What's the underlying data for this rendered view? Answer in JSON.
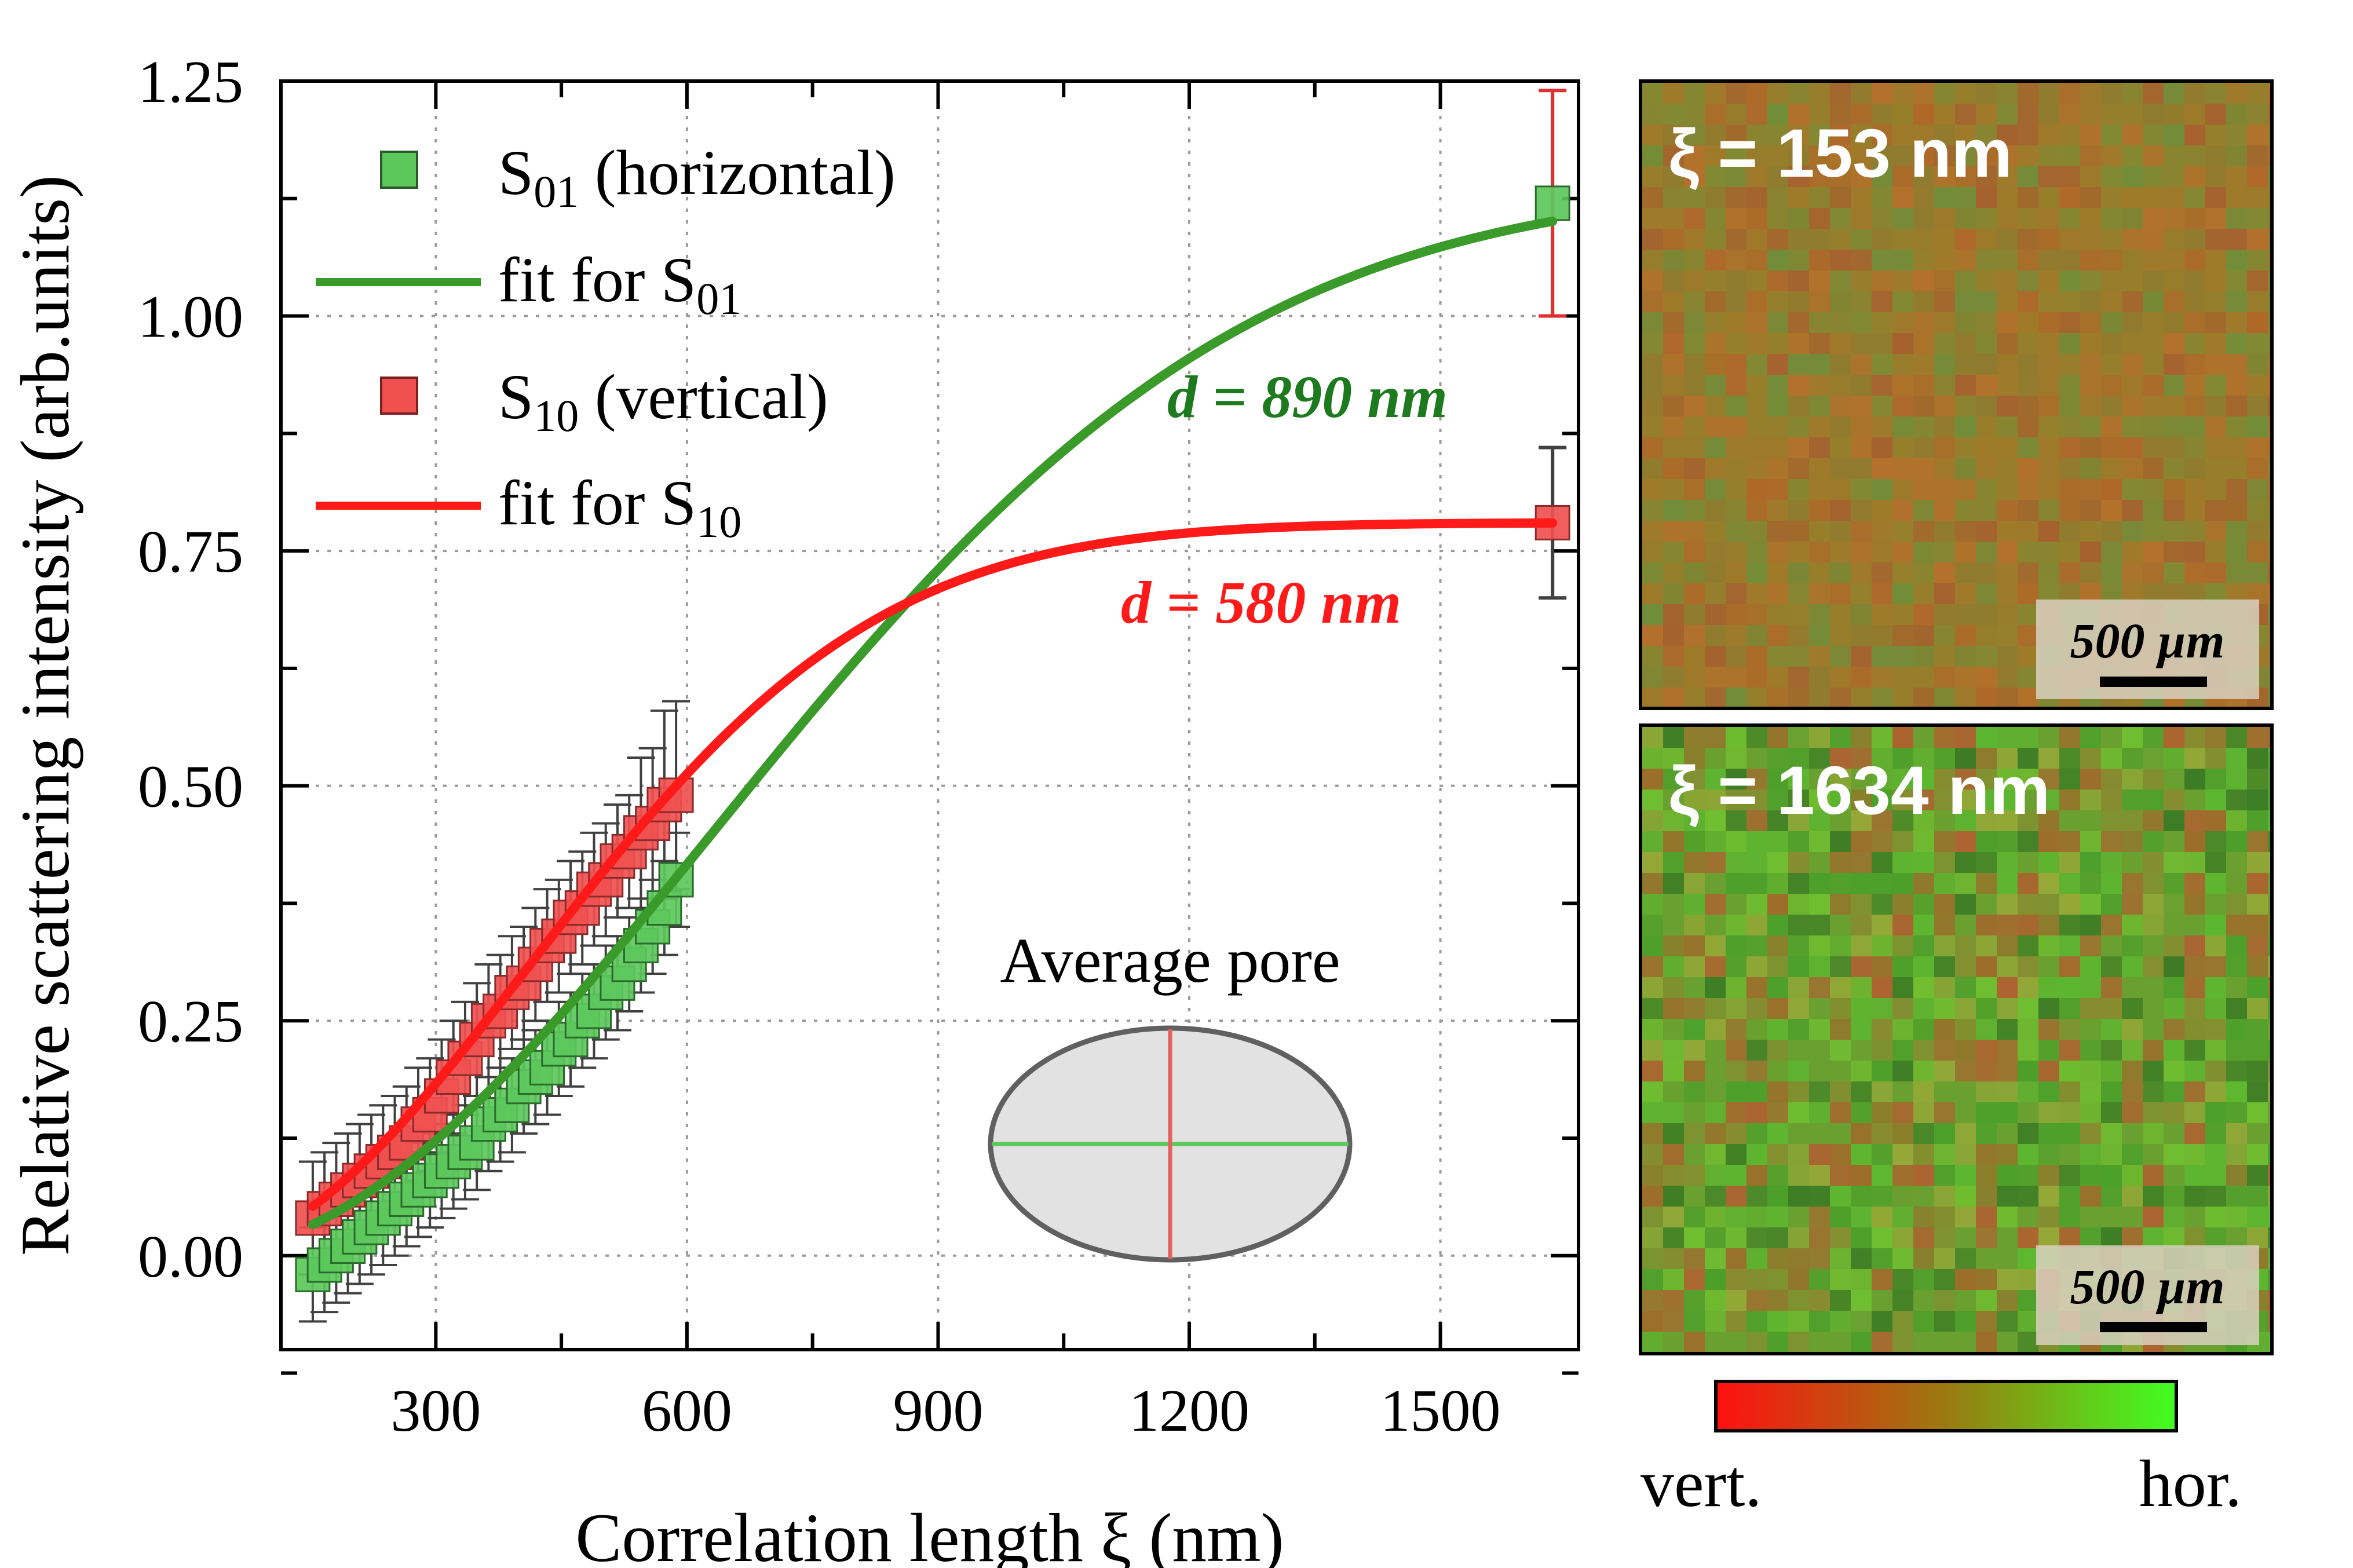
{
  "chart_data": {
    "type": "scatter",
    "xlabel": "Correlation length ξ (nm)",
    "ylabel": "Relative scattering intensity (arb.units)",
    "xlim": [
      115,
      1665
    ],
    "ylim": [
      -0.1,
      1.25
    ],
    "xticks": [
      300,
      600,
      900,
      1200,
      1500
    ],
    "xtick_labels": [
      "300",
      "600",
      "900",
      "1200",
      "1500"
    ],
    "yticks": [
      0.0,
      0.25,
      0.5,
      0.75,
      1.0,
      1.25
    ],
    "ytick_labels": [
      "0.00",
      "0.25",
      "0.50",
      "0.75",
      "1.00",
      "1.25"
    ],
    "grid": true,
    "legend_position": "top-left",
    "series": [
      {
        "name": "S01 (horizontal)",
        "legend_main": "S",
        "legend_sub": "01",
        "legend_suffix": " (horizontal)",
        "color": "#5cc85c",
        "errorbar_color": "#404040",
        "last_errorbar_color": "#e03030",
        "x": [
          153,
          167,
          181,
          195,
          209,
          223,
          237,
          251,
          265,
          279,
          293,
          307,
          321,
          335,
          349,
          363,
          377,
          391,
          405,
          419,
          433,
          447,
          461,
          475,
          489,
          503,
          517,
          531,
          545,
          559,
          573,
          587,
          1634
        ],
        "y": [
          -0.02,
          -0.01,
          0.0,
          0.01,
          0.02,
          0.03,
          0.04,
          0.05,
          0.06,
          0.07,
          0.08,
          0.09,
          0.1,
          0.11,
          0.12,
          0.14,
          0.15,
          0.16,
          0.18,
          0.19,
          0.2,
          0.22,
          0.23,
          0.25,
          0.26,
          0.28,
          0.29,
          0.31,
          0.33,
          0.35,
          0.37,
          0.4,
          1.12
        ],
        "err": [
          0.05,
          0.05,
          0.05,
          0.05,
          0.05,
          0.05,
          0.05,
          0.05,
          0.05,
          0.05,
          0.05,
          0.05,
          0.05,
          0.05,
          0.05,
          0.05,
          0.05,
          0.05,
          0.05,
          0.05,
          0.05,
          0.05,
          0.05,
          0.05,
          0.05,
          0.05,
          0.05,
          0.05,
          0.05,
          0.05,
          0.05,
          0.05,
          0.12
        ]
      },
      {
        "name": "S10 (vertical)",
        "legend_main": "S",
        "legend_sub": "10",
        "legend_suffix": " (vertical)",
        "color": "#f05050",
        "errorbar_color": "#404040",
        "last_errorbar_color": "#404040",
        "x": [
          153,
          167,
          181,
          195,
          209,
          223,
          237,
          251,
          265,
          279,
          293,
          307,
          321,
          335,
          349,
          363,
          377,
          391,
          405,
          419,
          433,
          447,
          461,
          475,
          489,
          503,
          517,
          531,
          545,
          559,
          573,
          587,
          1634
        ],
        "y": [
          0.04,
          0.05,
          0.06,
          0.07,
          0.08,
          0.09,
          0.1,
          0.11,
          0.12,
          0.14,
          0.15,
          0.17,
          0.19,
          0.21,
          0.23,
          0.25,
          0.26,
          0.28,
          0.29,
          0.31,
          0.33,
          0.34,
          0.36,
          0.37,
          0.39,
          0.4,
          0.42,
          0.43,
          0.45,
          0.46,
          0.48,
          0.49,
          0.78
        ],
        "err": [
          0.06,
          0.06,
          0.06,
          0.06,
          0.06,
          0.06,
          0.06,
          0.06,
          0.06,
          0.06,
          0.06,
          0.06,
          0.06,
          0.06,
          0.06,
          0.06,
          0.06,
          0.06,
          0.06,
          0.06,
          0.06,
          0.06,
          0.06,
          0.06,
          0.06,
          0.06,
          0.06,
          0.06,
          0.08,
          0.08,
          0.1,
          0.1,
          0.08
        ]
      }
    ],
    "fits": [
      {
        "name": "fit for S01",
        "legend_main": "fit for S",
        "legend_sub": "01",
        "color": "#3a9a2a",
        "amplitude": 1.14,
        "d_nm": 890,
        "x_start": 153,
        "x_end": 1634
      },
      {
        "name": "fit for S10",
        "legend_main": "fit for S",
        "legend_sub": "10",
        "color": "#ff1a1a",
        "amplitude": 0.78,
        "d_nm": 580,
        "x_start": 153,
        "x_end": 1634
      }
    ],
    "annotations": [
      {
        "text": "d = 890 nm",
        "color": "#1e7a1e"
      },
      {
        "text": "d = 580 nm",
        "color": "#ff1a1a"
      }
    ],
    "inset_title": "Average pore"
  },
  "micrographs": [
    {
      "title": "ξ = 153 nm",
      "scale_label": "500 µm",
      "base_color": "#9a7a2a"
    },
    {
      "title": "ξ = 1634 nm",
      "scale_label": "500 µm",
      "base_color": "#6aa030"
    }
  ],
  "colorbar": {
    "left_label": "vert.",
    "right_label": "hor.",
    "left_color": "#ff1010",
    "right_color": "#40ff20"
  }
}
